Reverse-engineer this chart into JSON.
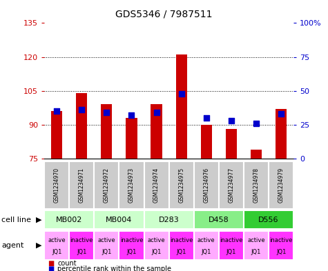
{
  "title": "GDS5346 / 7987511",
  "samples": [
    "GSM1234970",
    "GSM1234971",
    "GSM1234972",
    "GSM1234973",
    "GSM1234974",
    "GSM1234975",
    "GSM1234976",
    "GSM1234977",
    "GSM1234978",
    "GSM1234979"
  ],
  "count_values": [
    96,
    104,
    99,
    93,
    99,
    121,
    90,
    88,
    79,
    97
  ],
  "percentile_values": [
    35,
    36,
    34,
    32,
    34,
    48,
    30,
    28,
    26,
    33
  ],
  "ylim_left": [
    75,
    135
  ],
  "ylim_right": [
    0,
    100
  ],
  "yticks_left": [
    75,
    90,
    105,
    120,
    135
  ],
  "yticks_right": [
    0,
    25,
    50,
    75,
    100
  ],
  "bar_bottom": 75,
  "bar_color": "#cc0000",
  "dot_color": "#0000cc",
  "dot_size": 30,
  "cell_lines": [
    {
      "label": "MB002",
      "cols": [
        0,
        1
      ],
      "color": "#ccffcc"
    },
    {
      "label": "MB004",
      "cols": [
        2,
        3
      ],
      "color": "#ccffcc"
    },
    {
      "label": "D283",
      "cols": [
        4,
        5
      ],
      "color": "#ccffcc"
    },
    {
      "label": "D458",
      "cols": [
        6,
        7
      ],
      "color": "#88ee88"
    },
    {
      "label": "D556",
      "cols": [
        8,
        9
      ],
      "color": "#33cc33"
    }
  ],
  "agents": [
    "active",
    "inactive",
    "active",
    "inactive",
    "active",
    "inactive",
    "active",
    "inactive",
    "active",
    "inactive"
  ],
  "active_color": "#ffaaff",
  "inactive_color": "#ff33ff",
  "sample_box_color": "#cccccc",
  "bg_color": "#ffffff",
  "left_tick_color": "#cc0000",
  "right_tick_color": "#0000cc",
  "grid_yticks": [
    90,
    105,
    120
  ],
  "bar_width": 0.45,
  "title_fontsize": 10,
  "tick_fontsize": 8,
  "label_fontsize": 8,
  "sample_fontsize": 5.5,
  "agent_fontsize": 6
}
